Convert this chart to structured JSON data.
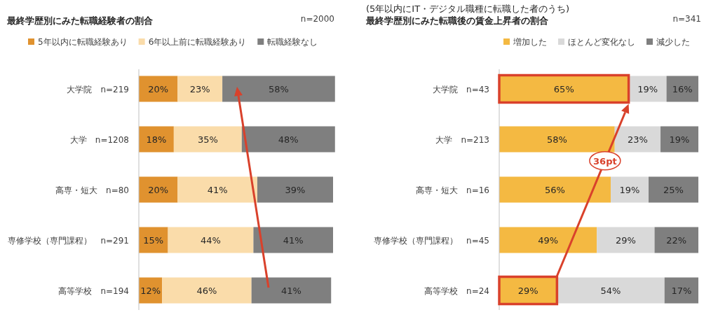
{
  "chart_data": [
    {
      "type": "bar",
      "orientation": "horizontal",
      "stacked": true,
      "title": "最終学歴別にみた転職経験者の割合",
      "annotations": [
        "n=2000"
      ],
      "categories": [
        "大学院　n=219",
        "大学　n=1208",
        "高専・短大　n=80",
        "専修学校（専門課程）　n=291",
        "高等学校　n=194"
      ],
      "series": [
        {
          "name": "5年以内に転職経験あり",
          "color": "#e0922f",
          "values": [
            20,
            18,
            20,
            15,
            12
          ],
          "value_labels": [
            "20%",
            "18%",
            "20%",
            "15%",
            "12%"
          ]
        },
        {
          "name": "6年以上前に転職経験あり",
          "color": "#fadcaa",
          "values": [
            23,
            35,
            41,
            44,
            46
          ],
          "value_labels": [
            "23%",
            "35%",
            "41%",
            "44%",
            "46%"
          ]
        },
        {
          "name": "転職経験なし",
          "color": "#7f7f7f",
          "values": [
            58,
            48,
            39,
            41,
            41
          ],
          "value_labels": [
            "58%",
            "48%",
            "39%",
            "41%",
            "41%"
          ]
        }
      ],
      "legend": "top"
    },
    {
      "type": "bar",
      "orientation": "horizontal",
      "stacked": true,
      "title": "最終学歴別にみた転職後の賃金上昇者の割合",
      "subtitle": "(5年以内にIT・デジタル職種に転職した者のうち)",
      "annotations": [
        "n=341",
        "36pt"
      ],
      "categories": [
        "大学院　n=43",
        "大学　n=213",
        "高専・短大　n=16",
        "専修学校（専門課程）　n=45",
        "高等学校　n=24"
      ],
      "series": [
        {
          "name": "増加した",
          "color": "#f4b942",
          "values": [
            65,
            58,
            56,
            49,
            29
          ],
          "value_labels": [
            "65%",
            "58%",
            "56%",
            "49%",
            "29%"
          ]
        },
        {
          "name": "ほとんど変化なし",
          "color": "#d9d9d9",
          "values": [
            19,
            23,
            19,
            29,
            54
          ],
          "value_labels": [
            "19%",
            "23%",
            "19%",
            "29%",
            "54%"
          ]
        },
        {
          "name": "減少した",
          "color": "#7f7f7f",
          "values": [
            16,
            19,
            25,
            22,
            17
          ],
          "value_labels": [
            "16%",
            "19%",
            "25%",
            "22%",
            "17%"
          ]
        }
      ],
      "legend": "top"
    }
  ]
}
